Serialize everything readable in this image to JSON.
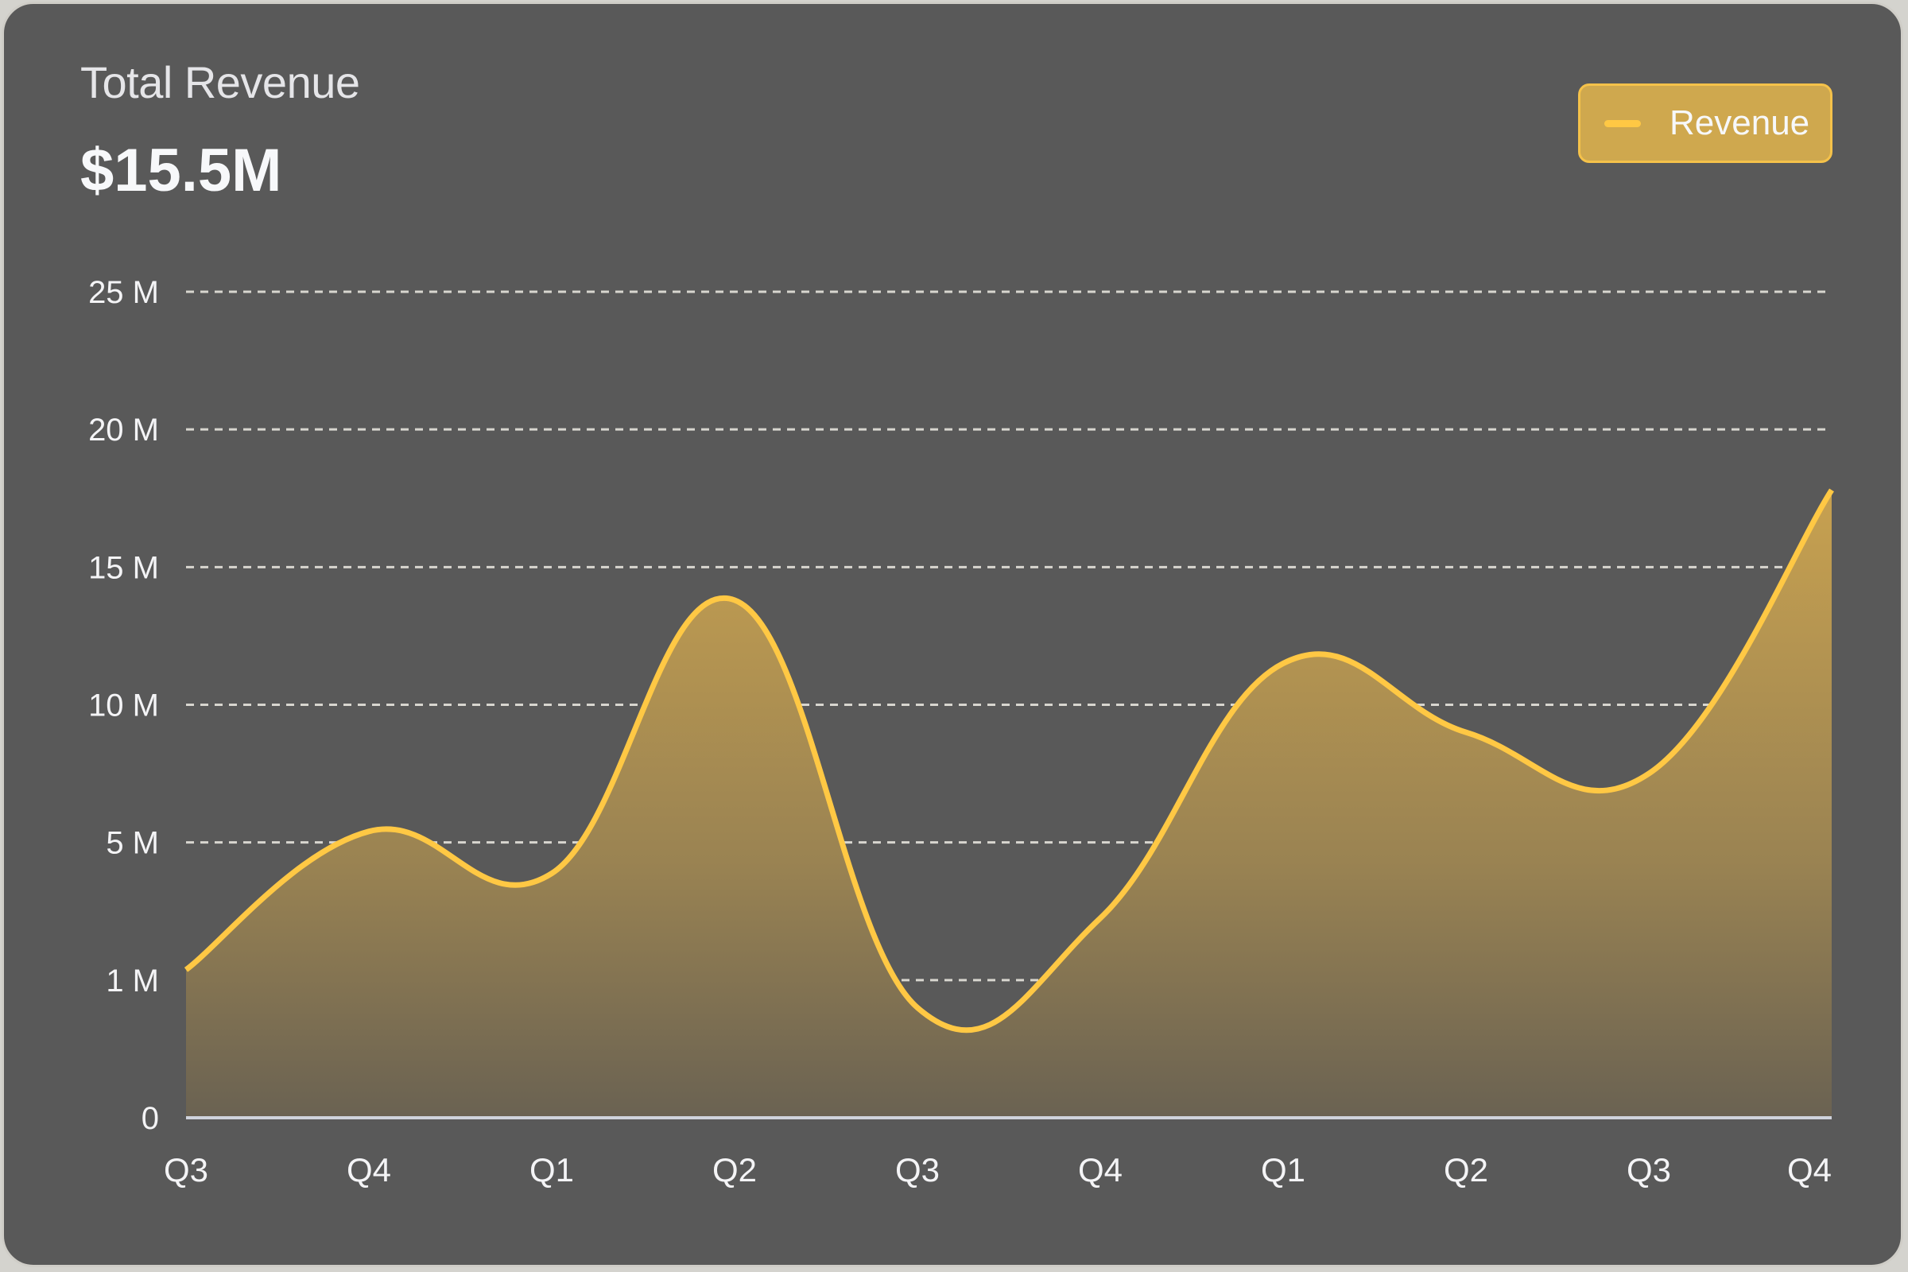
{
  "header": {
    "title": "Total Revenue",
    "value": "$15.5M"
  },
  "legend": {
    "label": "Revenue",
    "color": "#ffc844"
  },
  "colors": {
    "background": "#595959",
    "line": "#ffc844",
    "fill_top": "#c9a250",
    "grid": "#d8d6cf",
    "axis": "#cfd2dc"
  },
  "chart_data": {
    "type": "area",
    "title": "Total Revenue",
    "subtitle": "$15.5M",
    "xlabel": "",
    "ylabel": "",
    "categories": [
      "Q3",
      "Q4",
      "Q1",
      "Q2",
      "Q3",
      "Q4",
      "Q1",
      "Q2",
      "Q3",
      "Q4"
    ],
    "series": [
      {
        "name": "Revenue",
        "values": [
          1.3,
          5.4,
          4.1,
          13.8,
          0.8,
          2.8,
          11.5,
          9.0,
          7.5,
          17.8
        ]
      }
    ],
    "y_ticks": [
      "0",
      "1 M",
      "5 M",
      "10 M",
      "15 M",
      "20 M",
      "25 M"
    ],
    "y_tick_values": [
      0,
      1,
      5,
      10,
      15,
      20,
      25
    ],
    "ylim": [
      0,
      25
    ],
    "y_scale": "piecewise (ticks equally spaced)",
    "grid": true,
    "legend_position": "top-right",
    "smooth": true
  }
}
